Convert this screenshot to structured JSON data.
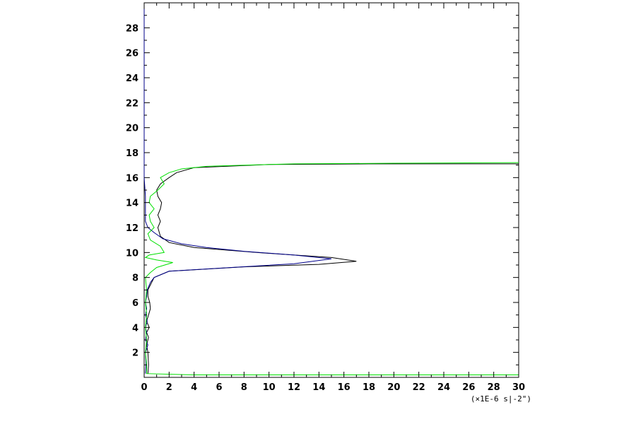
{
  "chart_data": {
    "type": "line",
    "title": "",
    "xlabel": "",
    "ylabel": "",
    "x_unit_label": "(×1E-6 s|-2\")",
    "xlim": [
      0,
      30
    ],
    "ylim": [
      0,
      30
    ],
    "x_ticks": [
      0,
      2,
      4,
      6,
      8,
      10,
      12,
      14,
      16,
      18,
      20,
      22,
      24,
      26,
      28,
      30
    ],
    "y_ticks": [
      2,
      4,
      6,
      8,
      10,
      12,
      14,
      16,
      18,
      20,
      22,
      24,
      26,
      28
    ],
    "grid": false,
    "series": [
      {
        "color": "#000000",
        "points": [
          [
            0.3,
            0.3
          ],
          [
            0.35,
            1.0
          ],
          [
            0.3,
            2.0
          ],
          [
            0.2,
            2.6
          ],
          [
            0.35,
            3.2
          ],
          [
            0.2,
            3.6
          ],
          [
            0.4,
            4.0
          ],
          [
            0.2,
            4.5
          ],
          [
            0.35,
            5.0
          ],
          [
            0.5,
            5.5
          ],
          [
            0.45,
            6.0
          ],
          [
            0.3,
            6.5
          ],
          [
            0.3,
            7.0
          ],
          [
            0.6,
            7.6
          ],
          [
            0.8,
            8.0
          ],
          [
            2.0,
            8.5
          ],
          [
            8.0,
            8.85
          ],
          [
            14.0,
            9.05
          ],
          [
            17.0,
            9.3
          ],
          [
            15.0,
            9.6
          ],
          [
            9.0,
            10.0
          ],
          [
            4.0,
            10.4
          ],
          [
            2.0,
            10.8
          ],
          [
            1.3,
            11.3
          ],
          [
            1.1,
            12.0
          ],
          [
            1.3,
            12.5
          ],
          [
            1.1,
            13.0
          ],
          [
            1.3,
            13.5
          ],
          [
            1.4,
            14.0
          ],
          [
            1.1,
            14.5
          ],
          [
            1.0,
            15.0
          ],
          [
            1.3,
            15.5
          ],
          [
            2.0,
            16.0
          ],
          [
            2.6,
            16.4
          ],
          [
            4.0,
            16.8
          ],
          [
            10.0,
            17.05
          ],
          [
            18.0,
            17.1
          ],
          [
            30.0,
            17.1
          ]
        ]
      },
      {
        "color": "#00008b",
        "points": [
          [
            0.1,
            0.3
          ],
          [
            0.15,
            1.0
          ],
          [
            0.1,
            2.0
          ],
          [
            0.3,
            2.6
          ],
          [
            0.1,
            3.0
          ],
          [
            0.2,
            3.6
          ],
          [
            0.1,
            4.0
          ],
          [
            0.25,
            4.5
          ],
          [
            0.1,
            5.0
          ],
          [
            0.2,
            5.5
          ],
          [
            0.1,
            6.0
          ],
          [
            0.2,
            6.5
          ],
          [
            0.25,
            7.0
          ],
          [
            0.5,
            7.6
          ],
          [
            0.8,
            8.0
          ],
          [
            2.0,
            8.5
          ],
          [
            7.0,
            8.8
          ],
          [
            12.0,
            9.1
          ],
          [
            15.0,
            9.5
          ],
          [
            12.0,
            9.8
          ],
          [
            8.0,
            10.1
          ],
          [
            5.0,
            10.4
          ],
          [
            3.0,
            10.7
          ],
          [
            1.5,
            11.1
          ],
          [
            0.8,
            11.6
          ],
          [
            0.3,
            12.0
          ],
          [
            0.1,
            12.5
          ],
          [
            0.1,
            13.5
          ],
          [
            0.1,
            14.5
          ],
          [
            0.0,
            16.0
          ],
          [
            0.0,
            18.0
          ],
          [
            0.0,
            29.5
          ]
        ]
      },
      {
        "color": "#00e000",
        "points": [
          [
            30.0,
            0.2
          ],
          [
            4.0,
            0.2
          ],
          [
            0.2,
            0.3
          ],
          [
            0.2,
            1.0
          ],
          [
            0.1,
            2.0
          ],
          [
            0.2,
            3.0
          ],
          [
            0.1,
            4.0
          ],
          [
            0.2,
            5.0
          ],
          [
            0.1,
            6.0
          ],
          [
            0.2,
            7.0
          ],
          [
            0.1,
            8.0
          ],
          [
            0.5,
            8.4
          ],
          [
            1.0,
            8.8
          ],
          [
            2.3,
            9.2
          ],
          [
            1.0,
            9.4
          ],
          [
            0.1,
            9.6
          ],
          [
            0.4,
            9.8
          ],
          [
            1.6,
            10.0
          ],
          [
            1.3,
            10.5
          ],
          [
            0.5,
            11.0
          ],
          [
            0.3,
            11.5
          ],
          [
            0.8,
            12.0
          ],
          [
            0.5,
            12.5
          ],
          [
            0.4,
            13.0
          ],
          [
            0.8,
            13.5
          ],
          [
            0.4,
            14.0
          ],
          [
            0.5,
            14.5
          ],
          [
            1.1,
            15.0
          ],
          [
            1.6,
            15.5
          ],
          [
            1.3,
            16.0
          ],
          [
            2.0,
            16.4
          ],
          [
            3.0,
            16.7
          ],
          [
            5.0,
            16.9
          ],
          [
            8.0,
            17.0
          ],
          [
            12.0,
            17.1
          ],
          [
            20.0,
            17.15
          ],
          [
            30.0,
            17.2
          ]
        ]
      }
    ]
  }
}
